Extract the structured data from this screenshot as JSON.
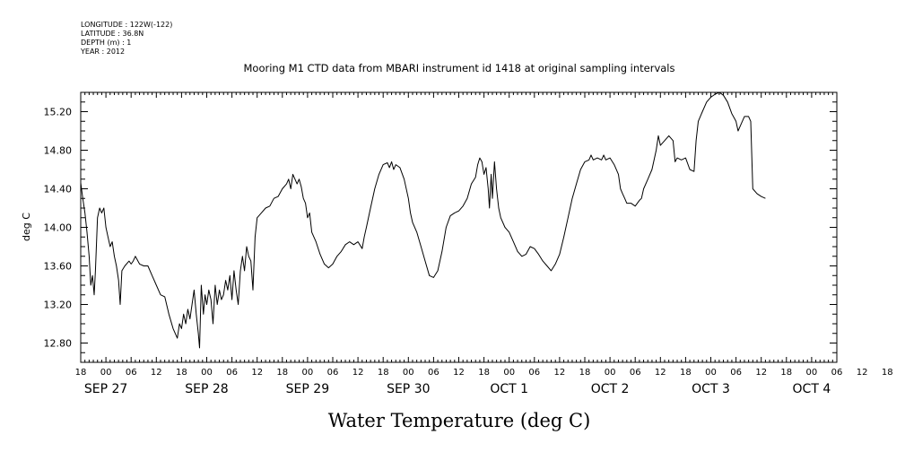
{
  "metadata": {
    "longitude": "LONGITUDE : 122W(-122)",
    "latitude": "LATITUDE : 36.8N",
    "depth": "DEPTH (m) : 1",
    "year": "YEAR : 2012"
  },
  "chart_data": {
    "type": "line",
    "title": "Mooring M1 CTD data from MBARI instrument id 1418 at original sampling intervals",
    "xlabel": "Water Temperature (deg C)",
    "ylabel": "deg C",
    "ylim": [
      12.6,
      15.4
    ],
    "xlim": [
      -6,
      174
    ],
    "x_unit": "hours since SEP 27 00:00",
    "y_ticks": [
      "12.80",
      "13.20",
      "13.60",
      "14.00",
      "14.40",
      "14.80",
      "15.20"
    ],
    "x_ticks": [
      "18",
      "00",
      "06",
      "12",
      "18",
      "00",
      "06",
      "12",
      "18",
      "00",
      "06",
      "12",
      "18",
      "00",
      "06",
      "12",
      "18",
      "00",
      "06",
      "12",
      "18",
      "00",
      "06",
      "12",
      "18",
      "00",
      "06",
      "12",
      "18",
      "00",
      "06",
      "12",
      "18",
      "00",
      "06",
      "12",
      "18"
    ],
    "x_day_labels": [
      {
        "label": "SEP 27",
        "hour": 0
      },
      {
        "label": "SEP 28",
        "hour": 24
      },
      {
        "label": "SEP 29",
        "hour": 48
      },
      {
        "label": "SEP 30",
        "hour": 72
      },
      {
        "label": "OCT  1",
        "hour": 96
      },
      {
        "label": "OCT  2",
        "hour": 120
      },
      {
        "label": "OCT  3",
        "hour": 144
      },
      {
        "label": "OCT  4",
        "hour": 168
      }
    ],
    "series": [
      {
        "values": [
          [
            -6,
            14.46
          ],
          [
            -5.5,
            14.3
          ],
          [
            -5,
            14.15
          ],
          [
            -4.5,
            13.95
          ],
          [
            -4,
            13.7
          ],
          [
            -3.6,
            13.4
          ],
          [
            -3.2,
            13.5
          ],
          [
            -2.8,
            13.3
          ],
          [
            -2.5,
            13.55
          ],
          [
            -2,
            14.1
          ],
          [
            -1.5,
            14.2
          ],
          [
            -1,
            14.15
          ],
          [
            -0.5,
            14.2
          ],
          [
            0,
            14.0
          ],
          [
            0.5,
            13.9
          ],
          [
            1,
            13.8
          ],
          [
            1.5,
            13.85
          ],
          [
            2,
            13.7
          ],
          [
            2.5,
            13.6
          ],
          [
            3,
            13.45
          ],
          [
            3.4,
            13.2
          ],
          [
            3.8,
            13.55
          ],
          [
            4.5,
            13.6
          ],
          [
            5.5,
            13.65
          ],
          [
            6,
            13.62
          ],
          [
            6.5,
            13.65
          ],
          [
            7,
            13.7
          ],
          [
            8,
            13.62
          ],
          [
            9,
            13.6
          ],
          [
            10,
            13.6
          ],
          [
            11,
            13.5
          ],
          [
            12,
            13.4
          ],
          [
            13,
            13.3
          ],
          [
            14,
            13.28
          ],
          [
            15,
            13.1
          ],
          [
            16,
            12.95
          ],
          [
            17,
            12.85
          ],
          [
            17.5,
            13.0
          ],
          [
            18,
            12.95
          ],
          [
            18.5,
            13.1
          ],
          [
            19,
            13.0
          ],
          [
            19.5,
            13.15
          ],
          [
            20,
            13.05
          ],
          [
            20.5,
            13.2
          ],
          [
            21,
            13.35
          ],
          [
            21.5,
            13.1
          ],
          [
            22,
            12.9
          ],
          [
            22.3,
            12.75
          ],
          [
            22.7,
            13.4
          ],
          [
            23.2,
            13.1
          ],
          [
            23.6,
            13.3
          ],
          [
            24,
            13.2
          ],
          [
            24.5,
            13.35
          ],
          [
            25,
            13.25
          ],
          [
            25.5,
            13.0
          ],
          [
            26,
            13.4
          ],
          [
            26.5,
            13.2
          ],
          [
            27,
            13.35
          ],
          [
            27.5,
            13.25
          ],
          [
            28,
            13.3
          ],
          [
            28.5,
            13.45
          ],
          [
            29,
            13.35
          ],
          [
            29.5,
            13.5
          ],
          [
            30,
            13.25
          ],
          [
            30.5,
            13.55
          ],
          [
            31,
            13.35
          ],
          [
            31.5,
            13.2
          ],
          [
            32,
            13.55
          ],
          [
            32.5,
            13.7
          ],
          [
            33,
            13.55
          ],
          [
            33.5,
            13.8
          ],
          [
            34,
            13.7
          ],
          [
            34.5,
            13.65
          ],
          [
            35,
            13.35
          ],
          [
            35.5,
            13.9
          ],
          [
            36,
            14.1
          ],
          [
            37,
            14.15
          ],
          [
            38,
            14.2
          ],
          [
            39,
            14.22
          ],
          [
            40,
            14.3
          ],
          [
            41,
            14.32
          ],
          [
            42,
            14.4
          ],
          [
            43,
            14.45
          ],
          [
            43.5,
            14.5
          ],
          [
            44,
            14.4
          ],
          [
            44.5,
            14.55
          ],
          [
            45,
            14.5
          ],
          [
            45.5,
            14.45
          ],
          [
            46,
            14.5
          ],
          [
            46.5,
            14.42
          ],
          [
            47,
            14.3
          ],
          [
            47.5,
            14.25
          ],
          [
            48,
            14.1
          ],
          [
            48.5,
            14.15
          ],
          [
            49,
            13.95
          ],
          [
            50,
            13.85
          ],
          [
            51,
            13.72
          ],
          [
            52,
            13.62
          ],
          [
            53,
            13.58
          ],
          [
            54,
            13.62
          ],
          [
            55,
            13.7
          ],
          [
            56,
            13.75
          ],
          [
            57,
            13.82
          ],
          [
            58,
            13.85
          ],
          [
            59,
            13.82
          ],
          [
            60,
            13.85
          ],
          [
            61,
            13.78
          ],
          [
            61.5,
            13.9
          ],
          [
            62,
            14.0
          ],
          [
            63,
            14.2
          ],
          [
            64,
            14.4
          ],
          [
            65,
            14.55
          ],
          [
            66,
            14.65
          ],
          [
            67,
            14.67
          ],
          [
            67.5,
            14.62
          ],
          [
            68,
            14.68
          ],
          [
            68.5,
            14.6
          ],
          [
            69,
            14.65
          ],
          [
            70,
            14.62
          ],
          [
            71,
            14.5
          ],
          [
            72,
            14.3
          ],
          [
            72.5,
            14.15
          ],
          [
            73,
            14.05
          ],
          [
            74,
            13.95
          ],
          [
            75,
            13.8
          ],
          [
            76,
            13.65
          ],
          [
            77,
            13.5
          ],
          [
            78,
            13.48
          ],
          [
            79,
            13.55
          ],
          [
            80,
            13.75
          ],
          [
            81,
            14.0
          ],
          [
            82,
            14.12
          ],
          [
            83,
            14.15
          ],
          [
            84,
            14.17
          ],
          [
            85,
            14.22
          ],
          [
            86,
            14.3
          ],
          [
            87,
            14.45
          ],
          [
            88,
            14.52
          ],
          [
            88.5,
            14.65
          ],
          [
            89,
            14.72
          ],
          [
            89.5,
            14.68
          ],
          [
            90,
            14.55
          ],
          [
            90.5,
            14.62
          ],
          [
            91,
            14.4
          ],
          [
            91.3,
            14.2
          ],
          [
            91.7,
            14.55
          ],
          [
            92,
            14.3
          ],
          [
            92.5,
            14.68
          ],
          [
            93,
            14.4
          ],
          [
            93.5,
            14.2
          ],
          [
            94,
            14.1
          ],
          [
            95,
            14.0
          ],
          [
            96,
            13.95
          ],
          [
            97,
            13.85
          ],
          [
            98,
            13.75
          ],
          [
            99,
            13.7
          ],
          [
            100,
            13.72
          ],
          [
            101,
            13.8
          ],
          [
            102,
            13.78
          ],
          [
            103,
            13.72
          ],
          [
            104,
            13.65
          ],
          [
            105,
            13.6
          ],
          [
            106,
            13.55
          ],
          [
            107,
            13.62
          ],
          [
            108,
            13.72
          ],
          [
            109,
            13.9
          ],
          [
            110,
            14.1
          ],
          [
            111,
            14.3
          ],
          [
            112,
            14.45
          ],
          [
            113,
            14.6
          ],
          [
            114,
            14.68
          ],
          [
            115,
            14.7
          ],
          [
            115.5,
            14.75
          ],
          [
            116,
            14.7
          ],
          [
            117,
            14.72
          ],
          [
            118,
            14.7
          ],
          [
            118.5,
            14.75
          ],
          [
            119,
            14.7
          ],
          [
            120,
            14.72
          ],
          [
            121,
            14.65
          ],
          [
            122,
            14.55
          ],
          [
            122.5,
            14.4
          ],
          [
            123,
            14.35
          ],
          [
            123.5,
            14.3
          ],
          [
            124,
            14.25
          ],
          [
            125,
            14.25
          ],
          [
            126,
            14.22
          ],
          [
            127,
            14.28
          ],
          [
            127.5,
            14.3
          ],
          [
            128,
            14.4
          ],
          [
            129,
            14.5
          ],
          [
            130,
            14.6
          ],
          [
            131,
            14.8
          ],
          [
            131.5,
            14.95
          ],
          [
            132,
            14.85
          ],
          [
            133,
            14.9
          ],
          [
            134,
            14.95
          ],
          [
            135,
            14.9
          ],
          [
            135.5,
            14.68
          ],
          [
            136,
            14.72
          ],
          [
            137,
            14.7
          ],
          [
            138,
            14.72
          ],
          [
            139,
            14.6
          ],
          [
            140,
            14.58
          ],
          [
            140.5,
            14.9
          ],
          [
            141,
            15.1
          ],
          [
            142,
            15.2
          ],
          [
            143,
            15.3
          ],
          [
            144,
            15.35
          ],
          [
            145,
            15.38
          ],
          [
            146,
            15.4
          ],
          [
            147,
            15.37
          ],
          [
            148,
            15.3
          ],
          [
            149,
            15.18
          ],
          [
            150,
            15.1
          ],
          [
            150.5,
            15.0
          ],
          [
            151,
            15.05
          ],
          [
            152,
            15.15
          ],
          [
            153,
            15.15
          ],
          [
            153.5,
            15.1
          ],
          [
            154,
            14.4
          ],
          [
            155,
            14.35
          ],
          [
            156,
            14.32
          ],
          [
            157,
            14.3
          ]
        ]
      }
    ]
  }
}
